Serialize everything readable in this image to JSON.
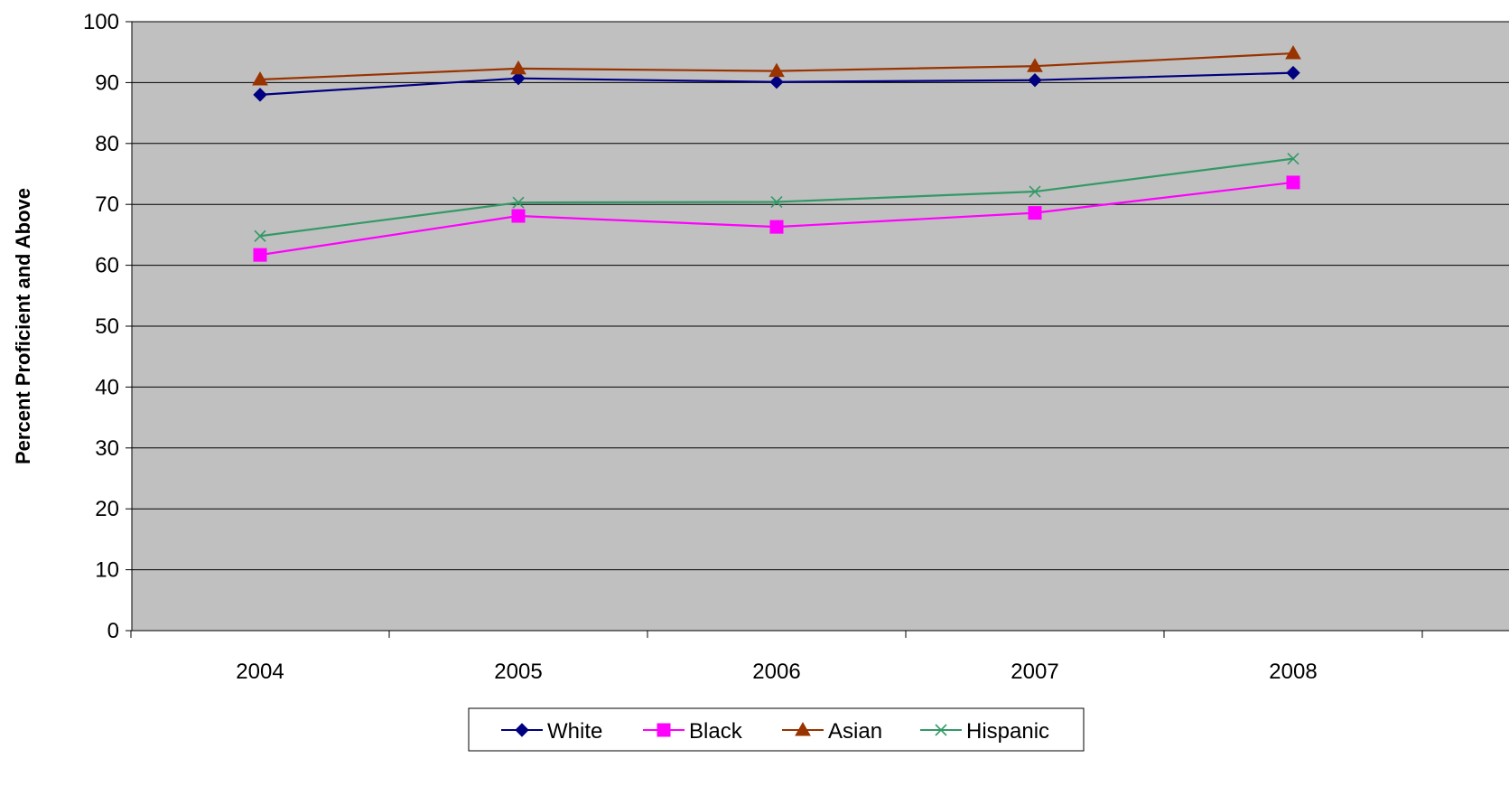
{
  "chart_data": {
    "type": "line",
    "title": "",
    "xlabel": "",
    "ylabel": "Percent Proficient and Above",
    "categories": [
      "2004",
      "2005",
      "2006",
      "2007",
      "2008"
    ],
    "ylim": [
      0,
      100
    ],
    "yticks": [
      0,
      10,
      20,
      30,
      40,
      50,
      60,
      70,
      80,
      90,
      100
    ],
    "grid": true,
    "legend_position": "bottom",
    "plot_background": "#C0C0C0",
    "series": [
      {
        "name": "White",
        "values": [
          88.0,
          90.7,
          90.1,
          90.4,
          91.6
        ],
        "color": "#000080",
        "marker": "diamond"
      },
      {
        "name": "Black",
        "values": [
          61.7,
          68.1,
          66.3,
          68.6,
          73.6
        ],
        "color": "#FF00FF",
        "marker": "square"
      },
      {
        "name": "Asian",
        "values": [
          90.5,
          92.3,
          91.9,
          92.7,
          94.8
        ],
        "color": "#993300",
        "marker": "triangle"
      },
      {
        "name": "Hispanic",
        "values": [
          64.8,
          70.3,
          70.4,
          72.1,
          77.5
        ],
        "color": "#339966",
        "marker": "x"
      }
    ]
  }
}
